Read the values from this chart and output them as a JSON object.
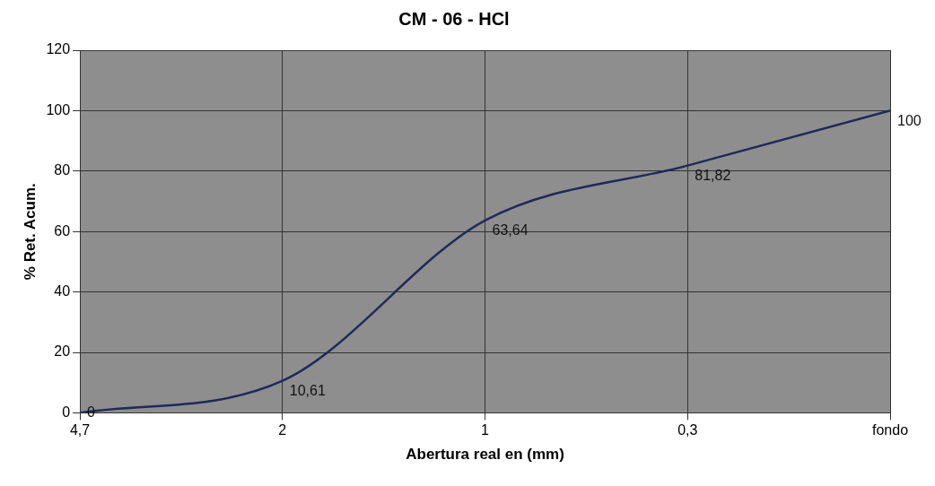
{
  "chart_data": {
    "type": "line",
    "title": "CM - 06 - HCl",
    "xlabel": "Abertura real en (mm)",
    "ylabel": "% Ret. Acum.",
    "categories": [
      "4,7",
      "2",
      "1",
      "0,3",
      "fondo"
    ],
    "series": [
      {
        "color": "#1f2a5a",
        "values": [
          0,
          10.61,
          63.64,
          81.82,
          100
        ],
        "value_labels": [
          "0",
          "10,61",
          "63,64",
          "81,82",
          "100"
        ]
      }
    ],
    "ylim": [
      0,
      120
    ],
    "yticks": [
      0,
      20,
      40,
      60,
      80,
      100,
      120
    ],
    "grid": true,
    "legend": false,
    "marker": "none",
    "line_style": "solid"
  }
}
